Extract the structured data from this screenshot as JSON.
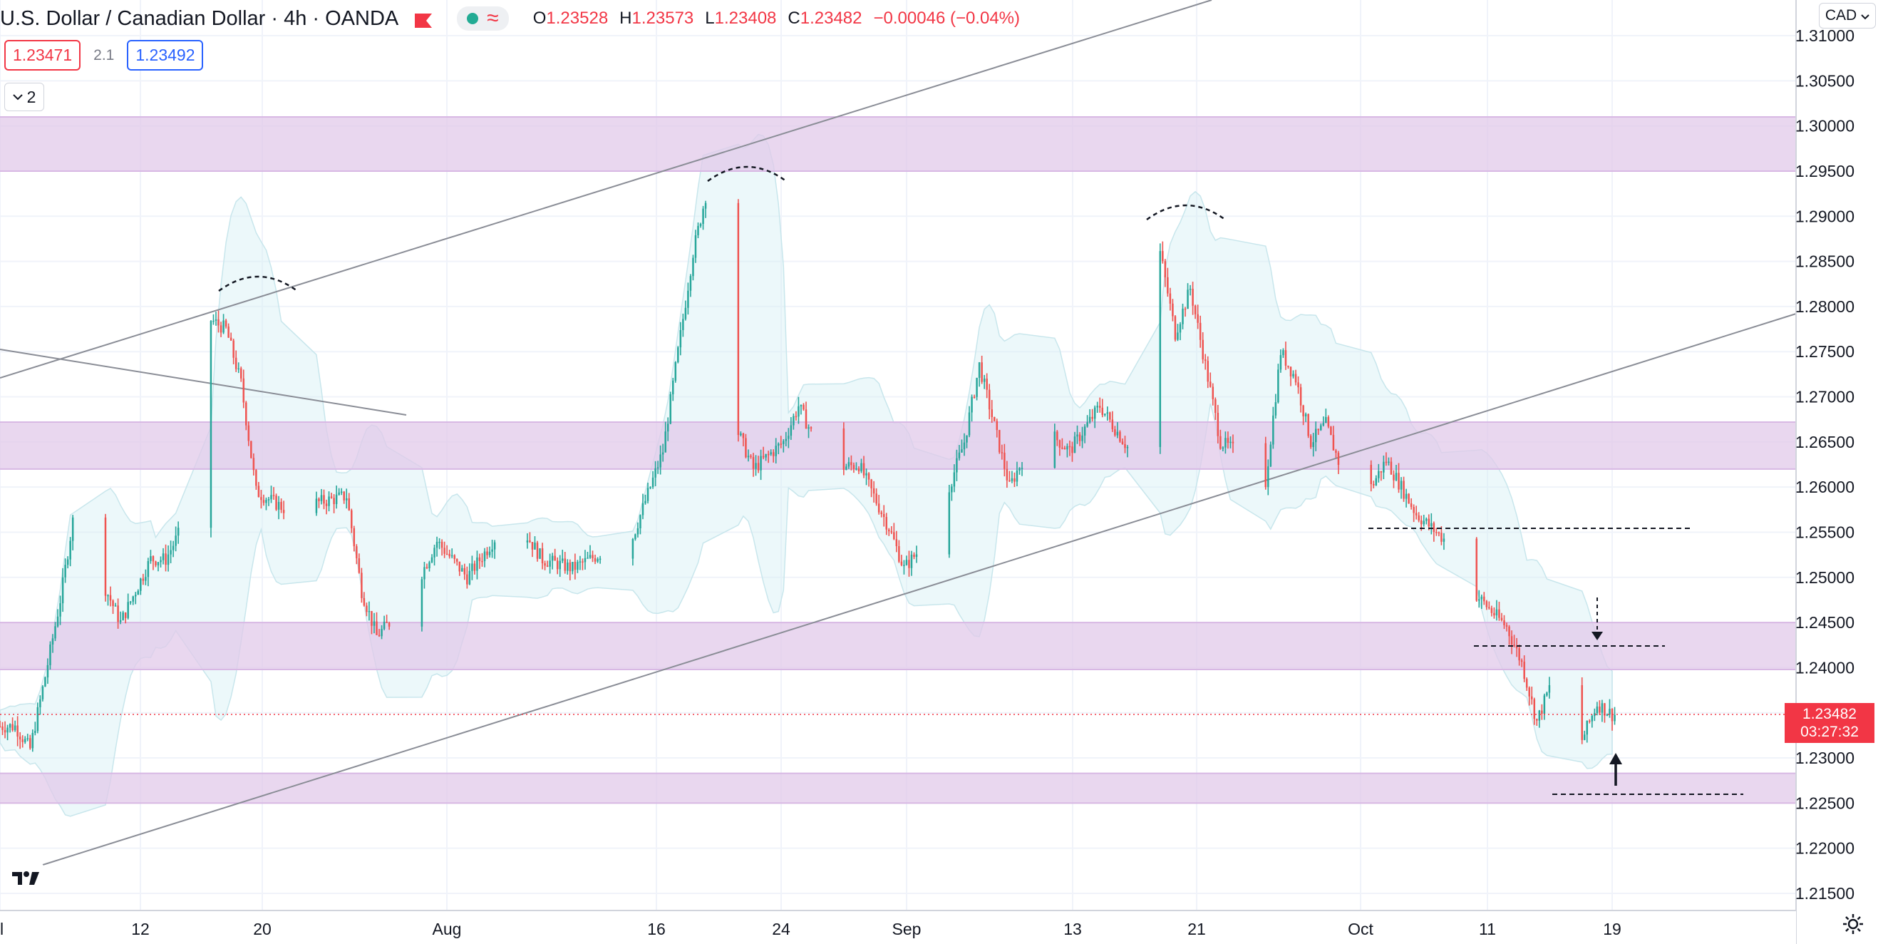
{
  "header": {
    "symbol": "U.S. Dollar / Canadian Dollar · 4h · OANDA",
    "indicator_icon": "wave-icon",
    "ohlc": {
      "open_label": "O",
      "open": "1.23528",
      "high_label": "H",
      "high": "1.23573",
      "low_label": "L",
      "low": "1.23408",
      "close_label": "C",
      "close": "1.23482",
      "change": "−0.00046 (−0.04%)"
    }
  },
  "trade": {
    "sell": "1.23471",
    "spread": "2.1",
    "buy": "1.23492"
  },
  "indicators_toggle": {
    "count": "2"
  },
  "currency_button": "CAD",
  "price_label": {
    "price": "1.23482",
    "countdown": "03:27:32"
  },
  "colors": {
    "up": "#26a69a",
    "down": "#ef5350",
    "zone": "#e1c9ea",
    "band": "#d4f0f5",
    "price_line": "#f23645"
  },
  "chart_data": {
    "type": "candlestick",
    "title": "",
    "y_axis": {
      "min": 1.2125,
      "max": 1.3115,
      "ticks": [
        "1.21500",
        "1.22000",
        "1.22500",
        "1.23000",
        "1.23500",
        "1.24000",
        "1.24500",
        "1.25000",
        "1.25500",
        "1.26000",
        "1.26500",
        "1.27000",
        "1.27500",
        "1.28000",
        "1.28500",
        "1.29000",
        "1.29500",
        "1.30000",
        "1.30500",
        "1.31000"
      ]
    },
    "x_axis": {
      "ticks": [
        "l",
        "12",
        "20",
        "Aug",
        "16",
        "24",
        "Sep",
        "13",
        "21",
        "Oct",
        "11",
        "19"
      ]
    },
    "price_path": [
      {
        "t": "Jul 6",
        "p": 1.2335
      },
      {
        "t": "Jul 7",
        "p": 1.231
      },
      {
        "t": "Jul 8",
        "p": 1.239
      },
      {
        "t": "Jul 9",
        "p": 1.2475
      },
      {
        "t": "Jul 10",
        "p": 1.258
      },
      {
        "t": "Jul 11",
        "p": 1.2525
      },
      {
        "t": "Jul 13",
        "p": 1.245
      },
      {
        "t": "Jul 15",
        "p": 1.252
      },
      {
        "t": "Jul 16",
        "p": 1.252
      },
      {
        "t": "Jul 18",
        "p": 1.2585
      },
      {
        "t": "Jul 19",
        "p": 1.2785
      },
      {
        "t": "Jul 20",
        "p": 1.2775
      },
      {
        "t": "Jul 21",
        "p": 1.2715
      },
      {
        "t": "Jul 22",
        "p": 1.2595
      },
      {
        "t": "Jul 24",
        "p": 1.2575
      },
      {
        "t": "Jul 28",
        "p": 1.259
      },
      {
        "t": "Jul 29",
        "p": 1.2485
      },
      {
        "t": "Jul 30",
        "p": 1.2435
      },
      {
        "t": "Aug 1",
        "p": 1.247
      },
      {
        "t": "Aug 3",
        "p": 1.254
      },
      {
        "t": "Aug 5",
        "p": 1.25
      },
      {
        "t": "Aug 8",
        "p": 1.257
      },
      {
        "t": "Aug 10",
        "p": 1.252
      },
      {
        "t": "Aug 12",
        "p": 1.251
      },
      {
        "t": "Aug 16",
        "p": 1.2545
      },
      {
        "t": "Aug 18",
        "p": 1.264
      },
      {
        "t": "Aug 20",
        "p": 1.286
      },
      {
        "t": "Aug 21",
        "p": 1.2935
      },
      {
        "t": "Aug 22",
        "p": 1.284
      },
      {
        "t": "Aug 23",
        "p": 1.266
      },
      {
        "t": "Aug 24",
        "p": 1.262
      },
      {
        "t": "Aug 26",
        "p": 1.265
      },
      {
        "t": "Aug 27",
        "p": 1.269
      },
      {
        "t": "Aug 29",
        "p": 1.262
      },
      {
        "t": "Aug 31",
        "p": 1.2625
      },
      {
        "t": "Sep 2",
        "p": 1.2555
      },
      {
        "t": "Sep 3",
        "p": 1.251
      },
      {
        "t": "Sep 5",
        "p": 1.255
      },
      {
        "t": "Sep 7",
        "p": 1.265
      },
      {
        "t": "Sep 8",
        "p": 1.2735
      },
      {
        "t": "Sep 10",
        "p": 1.26
      },
      {
        "t": "Sep 12",
        "p": 1.267
      },
      {
        "t": "Sep 14",
        "p": 1.264
      },
      {
        "t": "Sep 16",
        "p": 1.269
      },
      {
        "t": "Sep 18",
        "p": 1.264
      },
      {
        "t": "Sep 19",
        "p": 1.279
      },
      {
        "t": "Sep 20",
        "p": 1.286
      },
      {
        "t": "Sep 21",
        "p": 1.277
      },
      {
        "t": "Sep 22",
        "p": 1.282
      },
      {
        "t": "Sep 24",
        "p": 1.265
      },
      {
        "t": "Sep 26",
        "p": 1.263
      },
      {
        "t": "Sep 27",
        "p": 1.2605
      },
      {
        "t": "Sep 28",
        "p": 1.275
      },
      {
        "t": "Sep 29",
        "p": 1.272
      },
      {
        "t": "Sep 30",
        "p": 1.265
      },
      {
        "t": "Oct 1",
        "p": 1.267
      },
      {
        "t": "Oct 3",
        "p": 1.257
      },
      {
        "t": "Oct 5",
        "p": 1.263
      },
      {
        "t": "Oct 7",
        "p": 1.257
      },
      {
        "t": "Oct 9",
        "p": 1.254
      },
      {
        "t": "Oct 10",
        "p": 1.246
      },
      {
        "t": "Oct 11",
        "p": 1.248
      },
      {
        "t": "Oct 13",
        "p": 1.2445
      },
      {
        "t": "Oct 14",
        "p": 1.2405
      },
      {
        "t": "Oct 15",
        "p": 1.234
      },
      {
        "t": "Oct 16",
        "p": 1.2385
      },
      {
        "t": "Oct 17",
        "p": 1.238
      },
      {
        "t": "Oct 18",
        "p": 1.232
      },
      {
        "t": "Oct 19",
        "p": 1.236
      },
      {
        "t": "Oct 20",
        "p": 1.2348
      }
    ],
    "zones": [
      {
        "low": 1.295,
        "high": 1.301
      },
      {
        "low": 1.262,
        "high": 1.2672
      },
      {
        "low": 1.2398,
        "high": 1.245
      },
      {
        "low": 1.225,
        "high": 1.2283
      }
    ],
    "last_price": 1.23482
  }
}
